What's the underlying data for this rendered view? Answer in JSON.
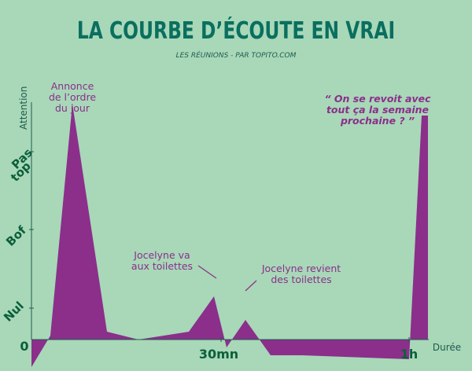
{
  "title": "LA COURBE D’ÉCOUTE EN VRAI",
  "subtitle": "LES RÉUNIONS - PAR TOPITO.COM",
  "colors": {
    "background": "#a8d8b8",
    "area": "#8b2f8b",
    "title": "#0a6f5f",
    "labels": "#0b5f3a"
  },
  "chart_data": {
    "type": "area",
    "title": "LA COURBE D’ÉCOUTE EN VRAI",
    "subtitle": "LES RÉUNIONS - PAR TOPITO.COM",
    "xlabel": "Durée",
    "ylabel": "Attention",
    "x_ticks": [
      "0",
      "30mn",
      "1h"
    ],
    "y_ticks": [
      "Nul",
      "Bof",
      "Pas top"
    ],
    "grid": false,
    "series": [
      {
        "x": [
          0,
          3,
          6.5,
          12,
          17,
          25,
          29,
          31,
          34,
          38,
          43,
          60,
          62,
          63
        ],
        "y": [
          0.05,
          0.45,
          3.4,
          0.5,
          0.4,
          0.5,
          0.95,
          0.3,
          0.65,
          0.2,
          0.2,
          0.15,
          3.25,
          3.25
        ]
      }
    ],
    "annotations": [
      {
        "text": "Annonce de l’ordre du jour",
        "lines": [
          "Annonce",
          "de l’ordre",
          "du jour"
        ]
      },
      {
        "text": "Jocelyne va aux toilettes",
        "lines": [
          "Jocelyne va",
          "aux toilettes"
        ]
      },
      {
        "text": "Jocelyne revient des toilettes",
        "lines": [
          "Jocelyne revient",
          "des toilettes"
        ]
      },
      {
        "text": "“ On se revoit avec tout ça la semaine prochaine ? ”",
        "lines": [
          "“ On se revoit avec",
          "tout ça la semaine",
          "prochaine ? ”"
        ]
      }
    ]
  }
}
